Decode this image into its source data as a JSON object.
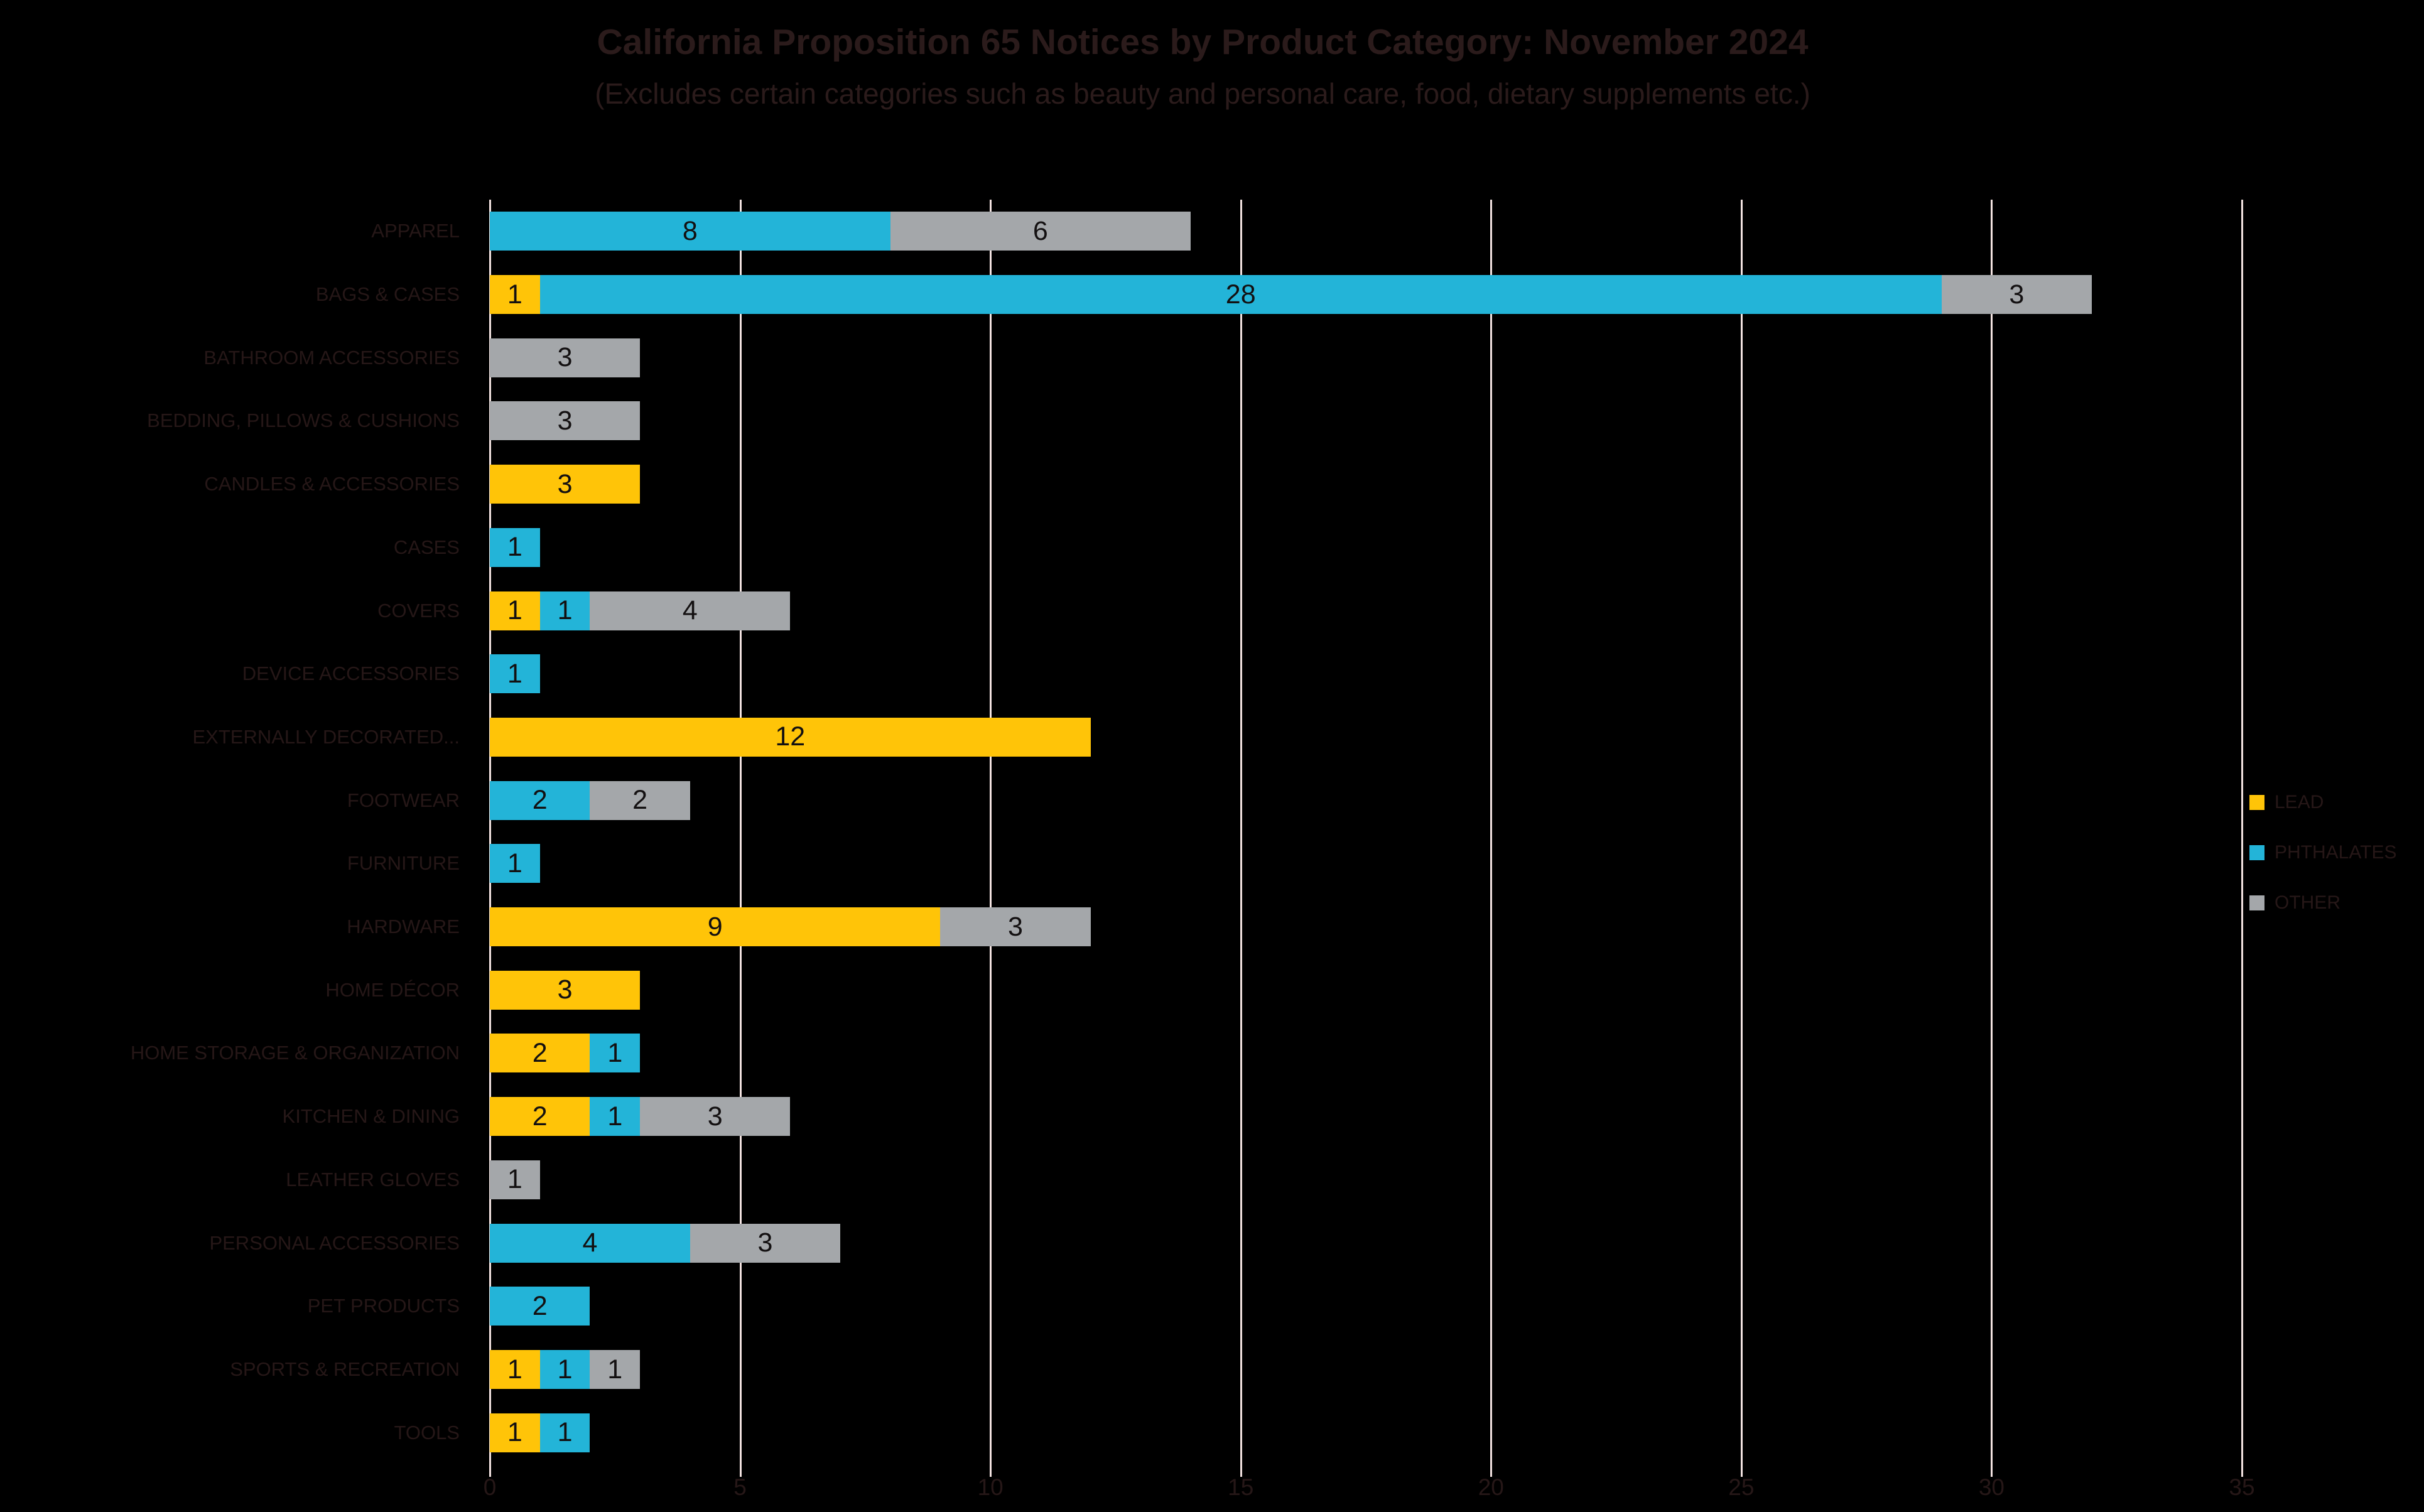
{
  "title": "California Proposition 65 Notices by Product Category: November 2024",
  "subtitle": "(Excludes certain categories such as beauty and personal care, food, dietary supplements etc.)",
  "colors": {
    "background": "#000000",
    "lead": "#FFC408",
    "phthalates": "#23B4D8",
    "other": "#A4A7AA",
    "gridline": "#F2E2E0",
    "title_text": "#2B1B1B",
    "axis_text": "#261717",
    "bar_label_text": "#131011"
  },
  "legend": {
    "position": "right",
    "items": [
      {
        "label": "LEAD",
        "color": "#FFC408"
      },
      {
        "label": "PHTHALATES",
        "color": "#23B4D8"
      },
      {
        "label": "OTHER",
        "color": "#A4A7AA"
      }
    ]
  },
  "x_axis": {
    "ticks": [
      0,
      5,
      10,
      15,
      20,
      25,
      30,
      35
    ],
    "max": 35
  },
  "chart_data": {
    "type": "bar",
    "orientation": "horizontal",
    "stacked": true,
    "title": "California Proposition 65 Notices by Product Category: November 2024",
    "subtitle": "(Excludes certain categories such as beauty and personal care, food, dietary supplements etc.)",
    "xlim": [
      0,
      35
    ],
    "grid": true,
    "legend_position": "right",
    "data_labels": "shown inside segments",
    "categories": [
      "APPAREL",
      "BAGS & CASES",
      "BATHROOM ACCESSORIES",
      "BEDDING, PILLOWS & CUSHIONS",
      "CANDLES & ACCESSORIES",
      "CASES",
      "COVERS",
      "DEVICE ACCESSORIES",
      "EXTERNALLY DECORATED...",
      "FOOTWEAR",
      "FURNITURE",
      "HARDWARE",
      "HOME DÉCOR",
      "HOME STORAGE & ORGANIZATION",
      "KITCHEN & DINING",
      "LEATHER GLOVES",
      "PERSONAL ACCESSORIES",
      "PET PRODUCTS",
      "SPORTS & RECREATION",
      "TOOLS"
    ],
    "series": [
      {
        "name": "LEAD",
        "color": "#FFC408",
        "values": [
          0,
          1,
          0,
          0,
          3,
          0,
          1,
          0,
          12,
          0,
          0,
          9,
          3,
          2,
          2,
          0,
          0,
          0,
          1,
          1
        ]
      },
      {
        "name": "PHTHALATES",
        "color": "#23B4D8",
        "values": [
          8,
          28,
          0,
          0,
          0,
          1,
          1,
          1,
          0,
          2,
          1,
          0,
          0,
          1,
          1,
          0,
          4,
          2,
          1,
          1
        ]
      },
      {
        "name": "OTHER",
        "color": "#A4A7AA",
        "values": [
          6,
          3,
          3,
          3,
          0,
          0,
          4,
          0,
          0,
          2,
          0,
          3,
          0,
          0,
          3,
          1,
          3,
          0,
          1,
          0
        ]
      }
    ]
  }
}
